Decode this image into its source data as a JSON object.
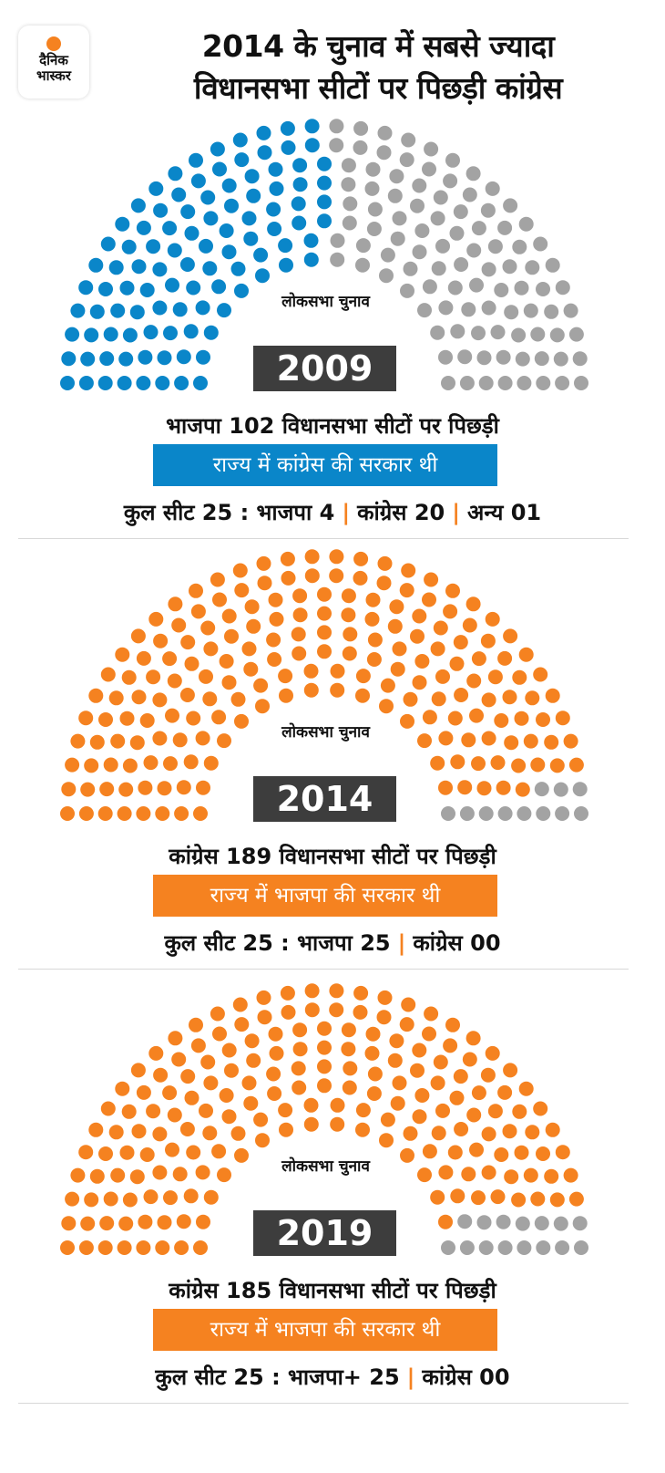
{
  "logo": {
    "line1": "दैनिक",
    "line2": "भास्कर"
  },
  "title": {
    "line1": "2014 के चुनाव में सबसे ज्यादा",
    "line2": "विधानसभा सीटों पर पिछड़ी कांग्रेस"
  },
  "colors": {
    "blue": "#0a86c9",
    "orange": "#f58220",
    "gray": "#a3a3a3",
    "dark": "#3d3d3d"
  },
  "chart_data": [
    {
      "type": "parliament",
      "label": "लोकसभा चुनाव",
      "year": "2009",
      "total_seats": 200,
      "series": [
        {
          "name": "भाजपा पिछड़ी",
          "value": 102,
          "color": "#0a86c9"
        },
        {
          "name": "अन्य",
          "value": 98,
          "color": "#a3a3a3"
        }
      ],
      "headline": "भाजपा 102 विधानसभा सीटों पर पिछड़ी",
      "government": "राज्य में कांग्रेस की सरकार थी",
      "government_color": "#0a86c9",
      "totals": [
        "कुल सीट 25 : भाजपा 4",
        "कांग्रेस 20",
        "अन्य 01"
      ]
    },
    {
      "type": "parliament",
      "label": "लोकसभा चुनाव",
      "year": "2014",
      "total_seats": 200,
      "series": [
        {
          "name": "कांग्रेस पिछड़ी",
          "value": 189,
          "color": "#f58220"
        },
        {
          "name": "अन्य",
          "value": 11,
          "color": "#a3a3a3"
        }
      ],
      "headline": "कांग्रेस 189 विधानसभा सीटों पर पिछड़ी",
      "government": "राज्य में भाजपा की सरकार थी",
      "government_color": "#f58220",
      "totals": [
        "कुल सीट 25 : भाजपा 25",
        "कांग्रेस 00"
      ]
    },
    {
      "type": "parliament",
      "label": "लोकसभा चुनाव",
      "year": "2019",
      "total_seats": 200,
      "series": [
        {
          "name": "कांग्रेस पिछड़ी",
          "value": 185,
          "color": "#f58220"
        },
        {
          "name": "अन्य",
          "value": 15,
          "color": "#a3a3a3"
        }
      ],
      "headline": "कांग्रेस 185 विधानसभा सीटों पर पिछड़ी",
      "government": "राज्य में भाजपा की सरकार थी",
      "government_color": "#f58220",
      "totals": [
        "कुल सीट 25 : भाजपा+ 25",
        "कांग्रेस 00"
      ]
    }
  ]
}
